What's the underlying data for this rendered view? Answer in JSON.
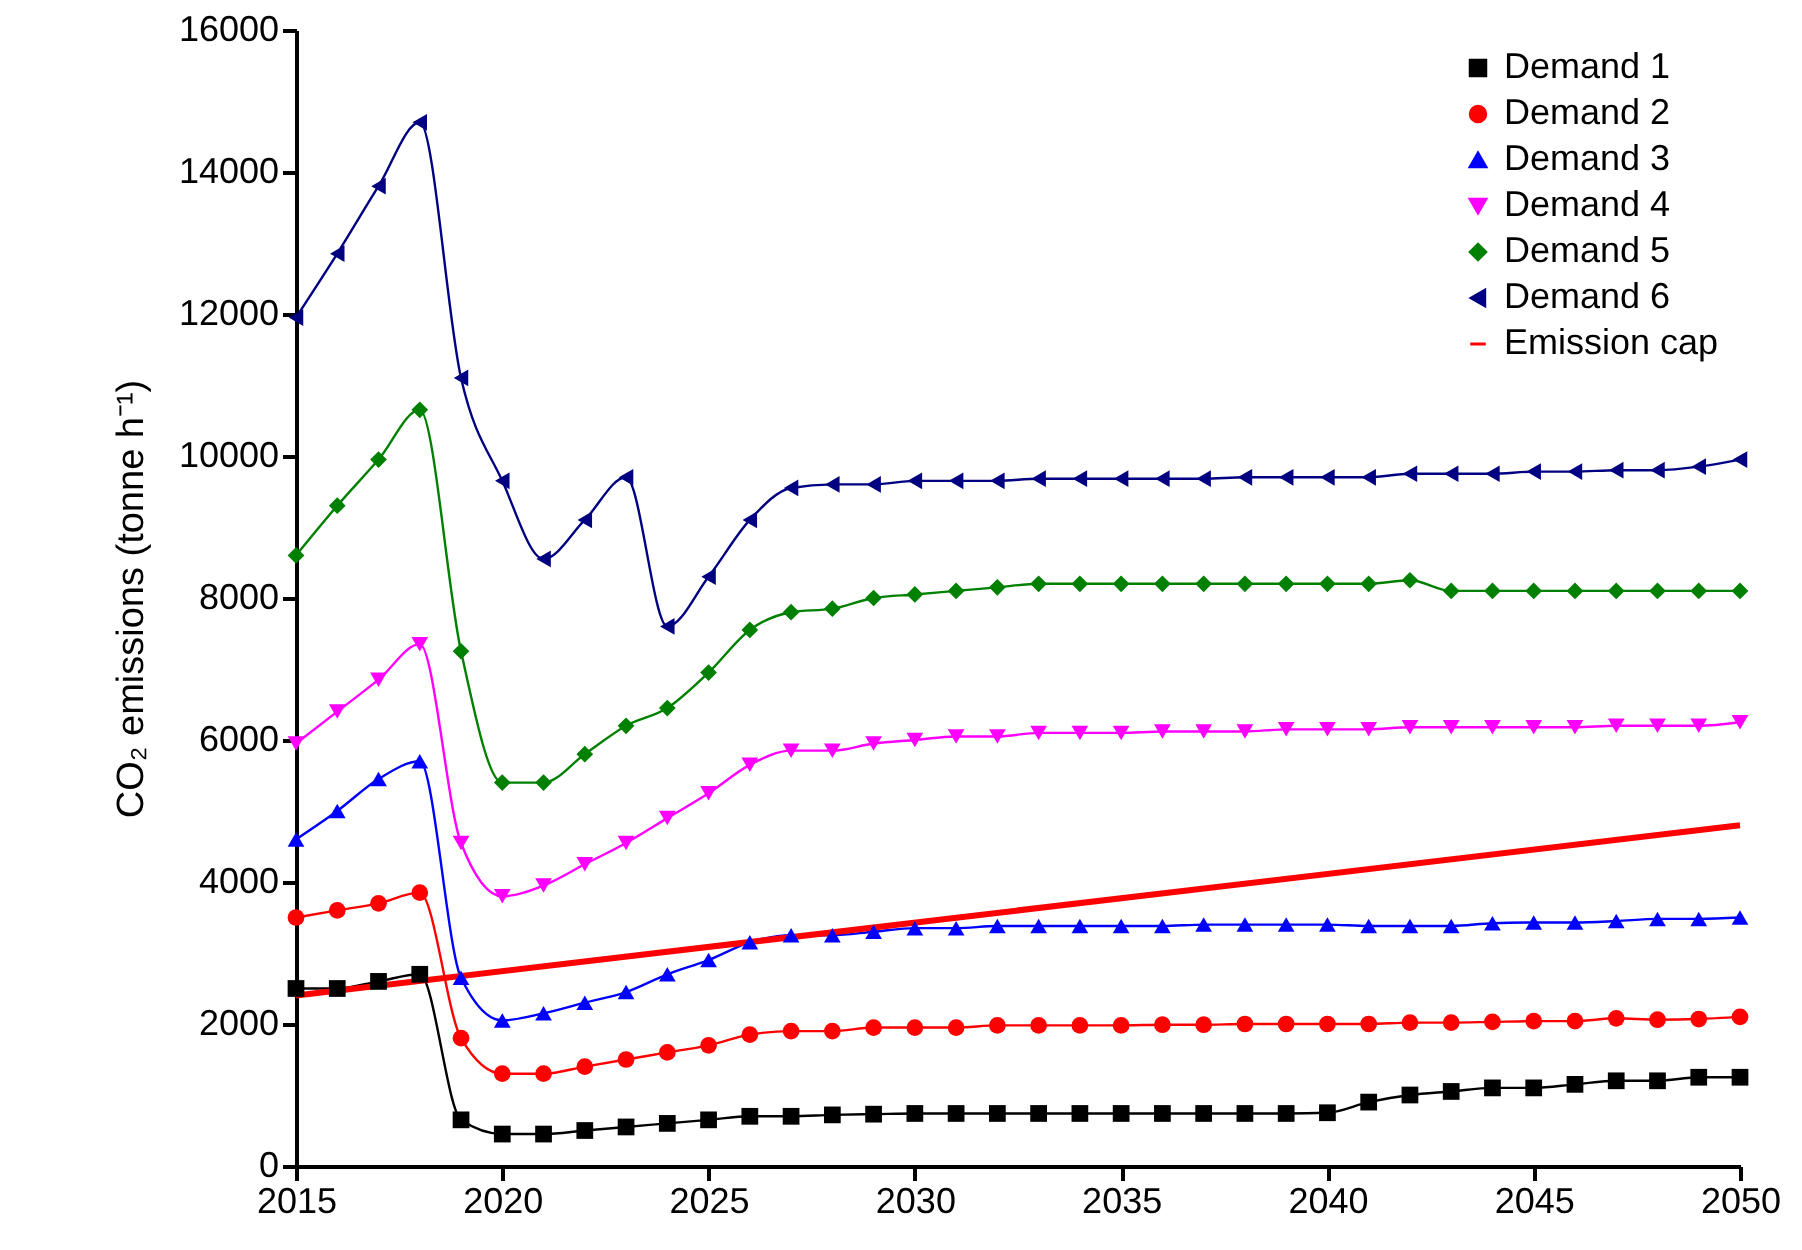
{
  "chart_data": {
    "type": "line",
    "ylabel": "CO₂ emissions (tonne h⁻¹)",
    "x": [
      2015,
      2016,
      2017,
      2018,
      2019,
      2020,
      2021,
      2022,
      2023,
      2024,
      2025,
      2026,
      2027,
      2028,
      2029,
      2030,
      2031,
      2032,
      2033,
      2034,
      2035,
      2036,
      2037,
      2038,
      2039,
      2040,
      2041,
      2042,
      2043,
      2044,
      2045,
      2046,
      2047,
      2048,
      2049,
      2050
    ],
    "xlim": [
      2015,
      2050
    ],
    "xticks": [
      2015,
      2020,
      2025,
      2030,
      2035,
      2040,
      2045,
      2050
    ],
    "ylim": [
      0,
      16000
    ],
    "yticks": [
      0,
      2000,
      4000,
      6000,
      8000,
      10000,
      12000,
      14000,
      16000
    ],
    "grid": false,
    "legend": "top right",
    "series": [
      {
        "name": "Demand 1",
        "color": "#000000",
        "marker": "square",
        "values": [
          2500,
          2500,
          2600,
          2700,
          650,
          450,
          450,
          500,
          550,
          600,
          650,
          700,
          700,
          720,
          730,
          740,
          740,
          740,
          740,
          740,
          740,
          740,
          740,
          740,
          740,
          750,
          900,
          1000,
          1050,
          1100,
          1100,
          1150,
          1200,
          1200,
          1250,
          1250
        ]
      },
      {
        "name": "Demand 2",
        "color": "#ff0000",
        "marker": "circle",
        "values": [
          3500,
          3600,
          3700,
          3850,
          1800,
          1300,
          1300,
          1400,
          1500,
          1600,
          1700,
          1850,
          1900,
          1900,
          1950,
          1950,
          1950,
          1980,
          1980,
          1980,
          1980,
          1990,
          1990,
          2000,
          2000,
          2000,
          2000,
          2020,
          2020,
          2030,
          2040,
          2040,
          2080,
          2060,
          2070,
          2100
        ]
      },
      {
        "name": "Demand 3",
        "color": "#0000ff",
        "marker": "triangle",
        "values": [
          4600,
          5000,
          5450,
          5700,
          2650,
          2050,
          2150,
          2300,
          2450,
          2700,
          2900,
          3150,
          3250,
          3250,
          3300,
          3350,
          3350,
          3380,
          3380,
          3380,
          3380,
          3380,
          3400,
          3400,
          3400,
          3400,
          3380,
          3380,
          3380,
          3420,
          3430,
          3430,
          3450,
          3480,
          3480,
          3500
        ]
      },
      {
        "name": "Demand 4",
        "color": "#ff00ff",
        "marker": "triangle-down",
        "values": [
          5950,
          6400,
          6850,
          7350,
          4550,
          3800,
          3950,
          4250,
          4550,
          4900,
          5250,
          5650,
          5850,
          5850,
          5950,
          6000,
          6050,
          6050,
          6100,
          6100,
          6100,
          6120,
          6120,
          6120,
          6150,
          6150,
          6150,
          6180,
          6180,
          6180,
          6180,
          6180,
          6200,
          6200,
          6200,
          6250
        ]
      },
      {
        "name": "Demand 5",
        "color": "#008000",
        "marker": "diamond",
        "values": [
          8600,
          9300,
          9950,
          10650,
          7250,
          5400,
          5400,
          5800,
          6200,
          6450,
          6950,
          7550,
          7800,
          7850,
          8000,
          8050,
          8100,
          8150,
          8200,
          8200,
          8200,
          8200,
          8200,
          8200,
          8200,
          8200,
          8200,
          8250,
          8100,
          8100,
          8100,
          8100,
          8100,
          8100,
          8100,
          8100
        ]
      },
      {
        "name": "Demand 6",
        "color": "#000080",
        "marker": "triangle-left",
        "values": [
          11950,
          12850,
          13800,
          14700,
          11100,
          9650,
          8550,
          9100,
          9700,
          7600,
          8300,
          9100,
          9550,
          9600,
          9600,
          9650,
          9650,
          9650,
          9680,
          9680,
          9680,
          9680,
          9680,
          9700,
          9700,
          9700,
          9700,
          9750,
          9750,
          9750,
          9780,
          9780,
          9800,
          9800,
          9850,
          9950
        ]
      },
      {
        "name": "Emission cap",
        "color": "#ff0000",
        "marker": "none",
        "x": [
          2015,
          2050
        ],
        "values": [
          2400,
          4800
        ]
      }
    ]
  }
}
